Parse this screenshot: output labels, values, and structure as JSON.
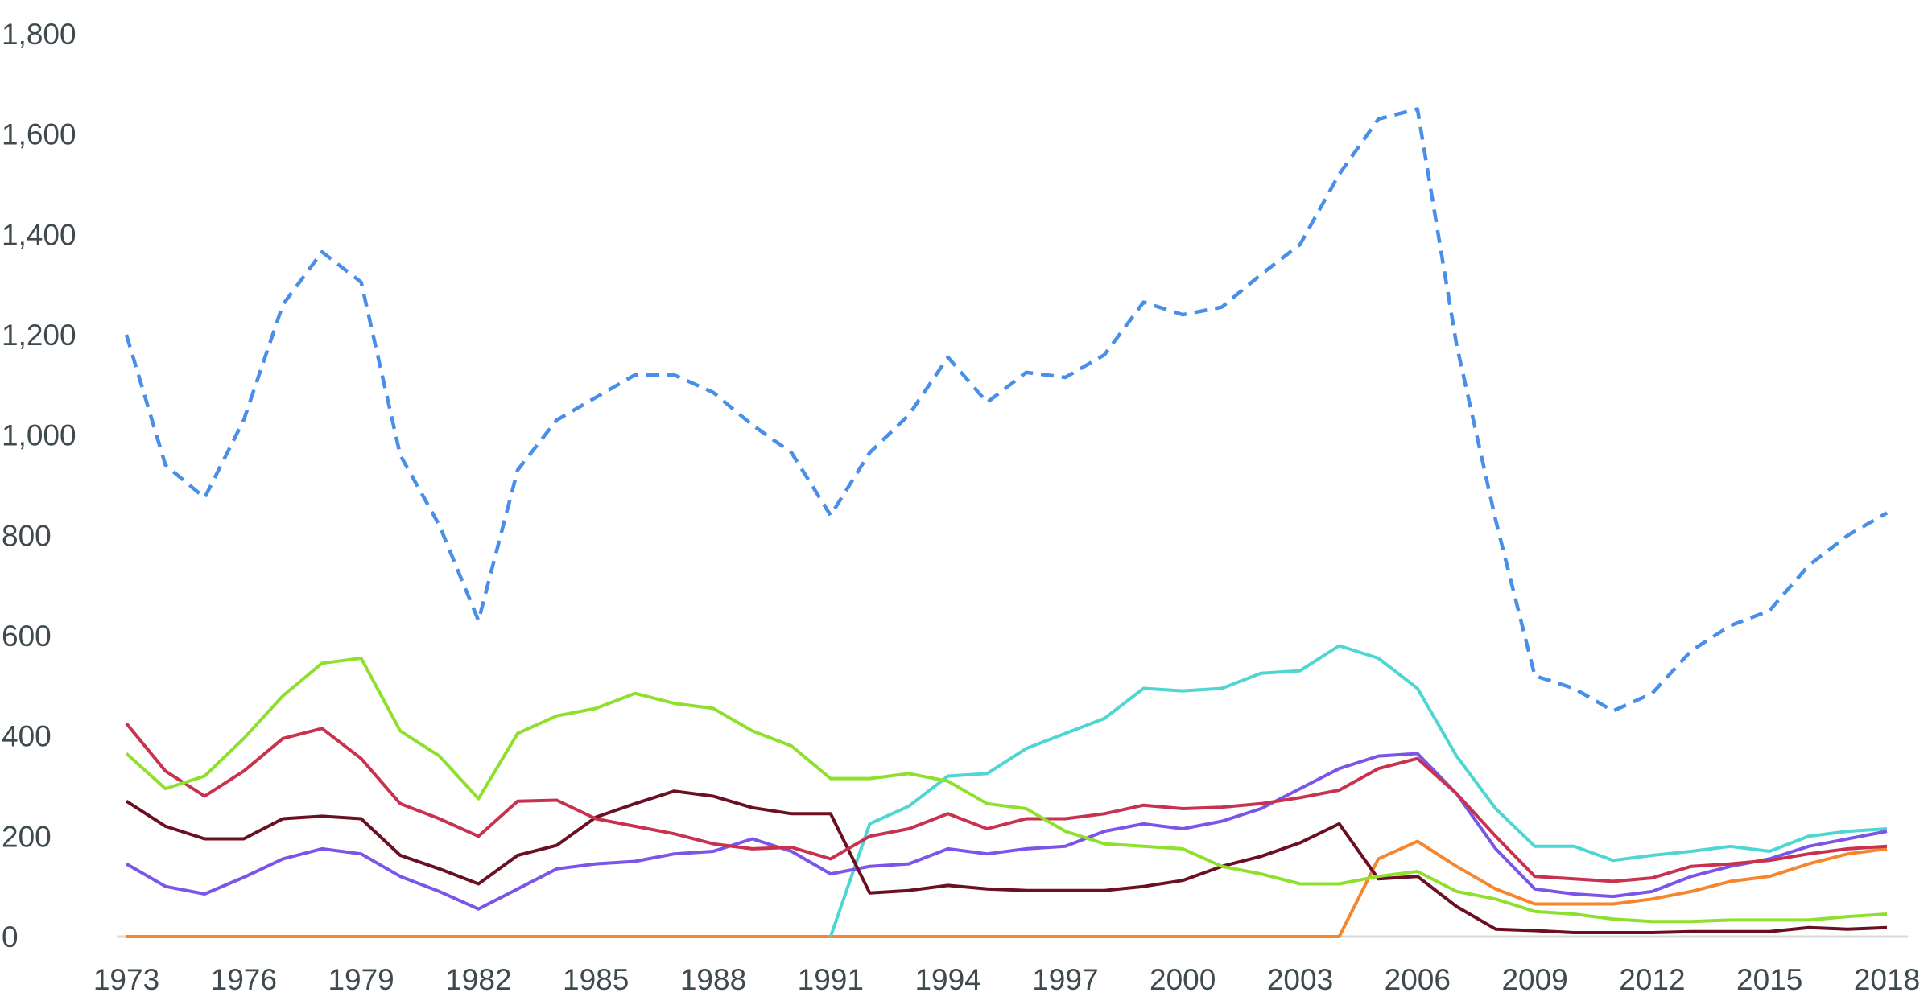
{
  "chart_data": {
    "type": "line",
    "title": "",
    "xlabel": "",
    "ylabel": "",
    "xlim": [
      1973,
      2018
    ],
    "ylim": [
      0,
      1800
    ],
    "grid": false,
    "legend": "none",
    "x_ticks": [
      "1973",
      "1976",
      "1979",
      "1982",
      "1985",
      "1988",
      "1991",
      "1994",
      "1997",
      "2000",
      "2003",
      "2006",
      "2009",
      "2012",
      "2015",
      "2018"
    ],
    "y_ticks": [
      "0",
      "200",
      "400",
      "600",
      "800",
      "1,000",
      "1,200",
      "1,400",
      "1,600",
      "1,800"
    ],
    "x": [
      1973,
      1974,
      1975,
      1976,
      1977,
      1978,
      1979,
      1980,
      1981,
      1982,
      1983,
      1984,
      1985,
      1986,
      1987,
      1988,
      1989,
      1990,
      1991,
      1992,
      1993,
      1994,
      1995,
      1996,
      1997,
      1998,
      1999,
      2000,
      2001,
      2002,
      2003,
      2004,
      2005,
      2006,
      2007,
      2008,
      2009,
      2010,
      2011,
      2012,
      2013,
      2014,
      2015,
      2016,
      2017,
      2018
    ],
    "series": [
      {
        "color": "#4a8fe7",
        "dashed": true,
        "values": [
          1200,
          940,
          875,
          1030,
          1260,
          1365,
          1305,
          960,
          820,
          630,
          930,
          1030,
          1075,
          1120,
          1120,
          1085,
          1020,
          965,
          840,
          965,
          1040,
          1155,
          1065,
          1125,
          1115,
          1160,
          1265,
          1240,
          1255,
          1320,
          1380,
          1520,
          1630,
          1650,
          1180,
          830,
          520,
          495,
          450,
          485,
          570,
          620,
          650,
          740,
          800,
          845
        ]
      },
      {
        "color": "#8fe02e",
        "dashed": false,
        "values": [
          365,
          295,
          320,
          395,
          480,
          545,
          555,
          410,
          360,
          275,
          405,
          440,
          455,
          485,
          465,
          455,
          410,
          380,
          315,
          315,
          325,
          310,
          265,
          255,
          210,
          185,
          180,
          175,
          140,
          125,
          105,
          105,
          120,
          130,
          90,
          75,
          50,
          45,
          35,
          30,
          30,
          33,
          33,
          33,
          40,
          45
        ]
      },
      {
        "color": "#c8324f",
        "dashed": false,
        "values": [
          425,
          330,
          280,
          330,
          395,
          415,
          355,
          265,
          235,
          200,
          270,
          272,
          235,
          220,
          205,
          185,
          175,
          178,
          155,
          200,
          215,
          245,
          215,
          235,
          235,
          245,
          262,
          255,
          258,
          265,
          277,
          292,
          335,
          355,
          285,
          200,
          120,
          115,
          110,
          117,
          140,
          145,
          152,
          165,
          175,
          180
        ]
      },
      {
        "color": "#6b0f22",
        "dashed": false,
        "values": [
          270,
          220,
          195,
          195,
          235,
          240,
          235,
          162,
          135,
          105,
          162,
          182,
          238,
          265,
          290,
          280,
          257,
          245,
          245,
          87,
          92,
          102,
          95,
          92,
          92,
          92,
          100,
          112,
          140,
          160,
          187,
          225,
          115,
          120,
          60,
          15,
          12,
          8,
          8,
          8,
          10,
          10,
          10,
          18,
          15,
          18
        ]
      },
      {
        "color": "#7b55e8",
        "dashed": false,
        "values": [
          145,
          100,
          85,
          118,
          155,
          175,
          165,
          120,
          90,
          55,
          95,
          135,
          145,
          150,
          165,
          170,
          195,
          170,
          125,
          140,
          145,
          175,
          165,
          175,
          180,
          210,
          225,
          215,
          230,
          255,
          295,
          335,
          360,
          365,
          285,
          175,
          95,
          85,
          80,
          90,
          120,
          140,
          155,
          180,
          195,
          210
        ]
      },
      {
        "color": "#4fd6d2",
        "dashed": false,
        "values": [
          null,
          null,
          null,
          null,
          null,
          null,
          null,
          null,
          null,
          null,
          null,
          null,
          null,
          null,
          null,
          null,
          null,
          null,
          0,
          225,
          260,
          320,
          325,
          375,
          405,
          435,
          495,
          490,
          495,
          525,
          530,
          580,
          555,
          495,
          360,
          255,
          180,
          180,
          152,
          162,
          170,
          180,
          170,
          200,
          210,
          215
        ]
      },
      {
        "color": "#f5862e",
        "dashed": false,
        "values": [
          0,
          0,
          0,
          0,
          0,
          0,
          0,
          0,
          0,
          0,
          0,
          0,
          0,
          0,
          0,
          0,
          0,
          0,
          0,
          0,
          0,
          0,
          0,
          0,
          0,
          0,
          0,
          0,
          0,
          0,
          0,
          0,
          155,
          190,
          140,
          95,
          65,
          65,
          65,
          75,
          90,
          110,
          120,
          145,
          165,
          175
        ]
      }
    ]
  }
}
